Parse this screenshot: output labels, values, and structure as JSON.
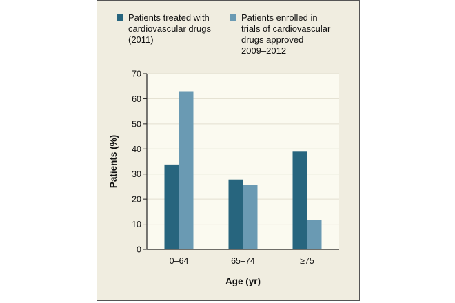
{
  "chart_data": {
    "type": "bar",
    "title": "",
    "xlabel": "Age (yr)",
    "ylabel": "Patients (%)",
    "ylim": [
      0,
      70
    ],
    "yticks": [
      0,
      10,
      20,
      30,
      40,
      50,
      60,
      70
    ],
    "categories": [
      "0–64",
      "65–74",
      "≥75"
    ],
    "series": [
      {
        "name": "Patients treated with cardiovascular drugs (2011)",
        "legend_lines": [
          "Patients treated with",
          "cardiovascular drugs",
          "(2011)"
        ],
        "color": "#27657e",
        "values": [
          33.8,
          27.8,
          38.9
        ]
      },
      {
        "name": "Patients enrolled in trials of cardiovascular drugs approved 2009–2012",
        "legend_lines": [
          "Patients enrolled in",
          "trials of cardiovascular",
          "drugs approved",
          "2009–2012"
        ],
        "color": "#6a9ab3",
        "values": [
          63.0,
          25.7,
          11.8
        ]
      }
    ],
    "grid": true,
    "legend_position": "top",
    "plot_background": "#fbfaf0",
    "panel_background": "#f0ede0",
    "grid_color": "#e2dfcf"
  }
}
